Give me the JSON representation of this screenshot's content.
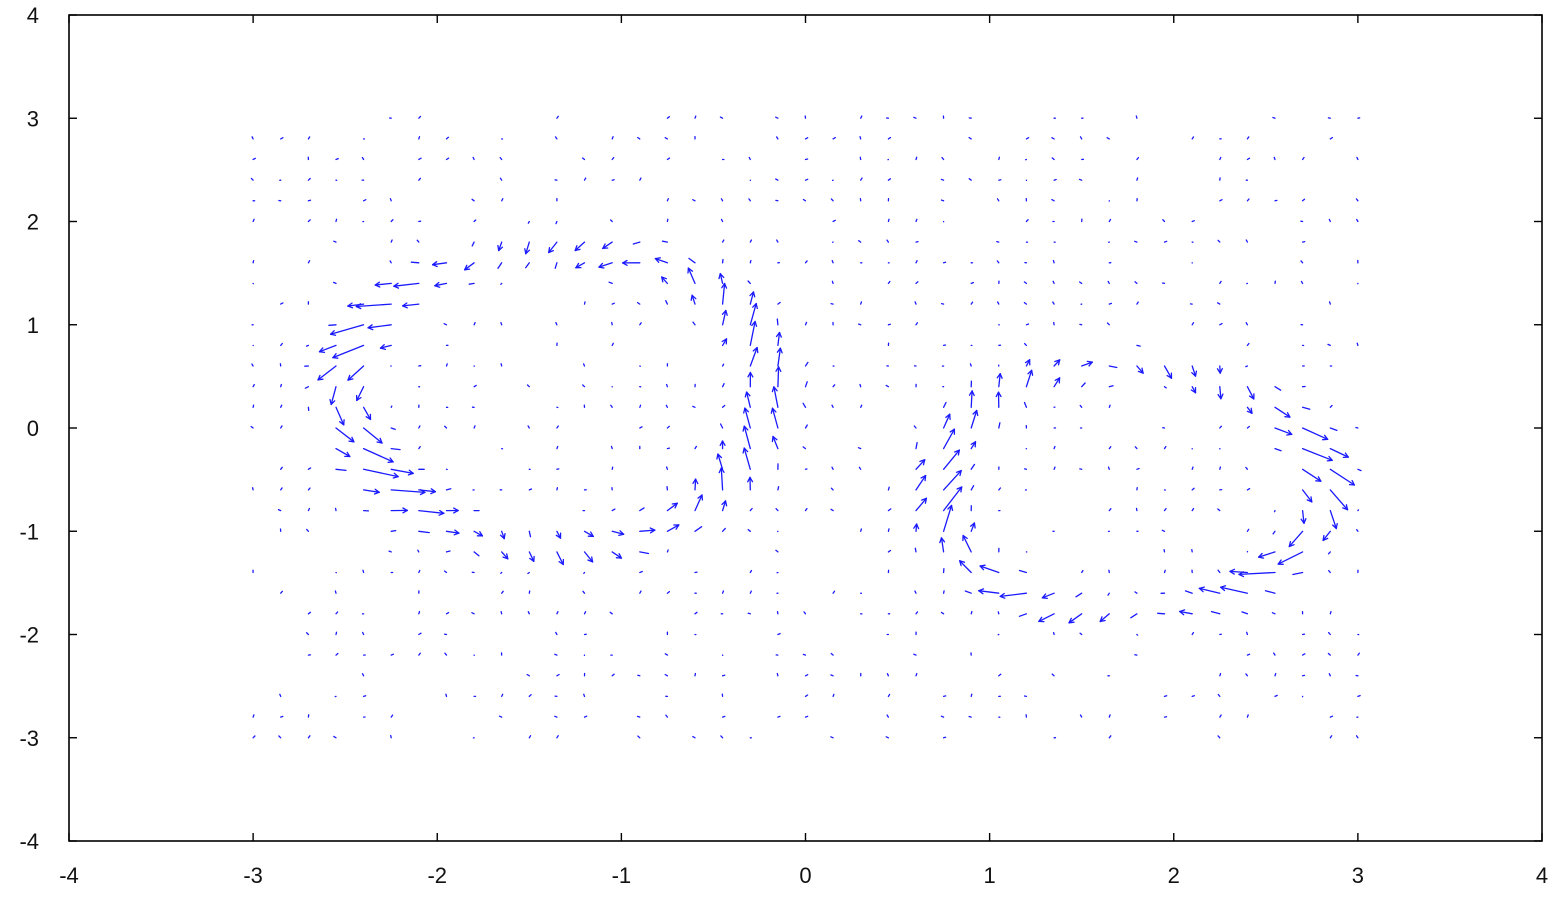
{
  "chart_data": {
    "type": "quiver",
    "title": "",
    "xlabel": "",
    "ylabel": "",
    "xlim": [
      -4,
      4
    ],
    "ylim": [
      -4,
      4
    ],
    "xticks": [
      -4,
      -3,
      -2,
      -1,
      0,
      1,
      2,
      3,
      4
    ],
    "yticks": [
      -4,
      -3,
      -2,
      -1,
      0,
      1,
      2,
      3,
      4
    ],
    "xtick_labels": [
      "-4",
      "-3",
      "-2",
      "-1",
      "0",
      "1",
      "2",
      "3",
      "4"
    ],
    "ytick_labels": [
      "-4",
      "-3",
      "-2",
      "-1",
      "0",
      "1",
      "2",
      "3",
      "4"
    ],
    "grid": false,
    "legend": "none",
    "colors": {
      "arrows": "#1a1aff",
      "axes": "#000000"
    },
    "grid_x": {
      "start": -3,
      "stop": 3.05,
      "step": 0.15
    },
    "grid_y": {
      "start": -3,
      "stop": 3.05,
      "step": 0.2
    },
    "field": {
      "description_of_visible_structure": "",
      "rings": [
        {
          "cx": -1.35,
          "cy": 0.3,
          "rx": 1.15,
          "ry": 1.45
        },
        {
          "cx": 1.75,
          "cy": -0.6,
          "rx": 1.05,
          "ry": 1.2
        }
      ]
    }
  }
}
